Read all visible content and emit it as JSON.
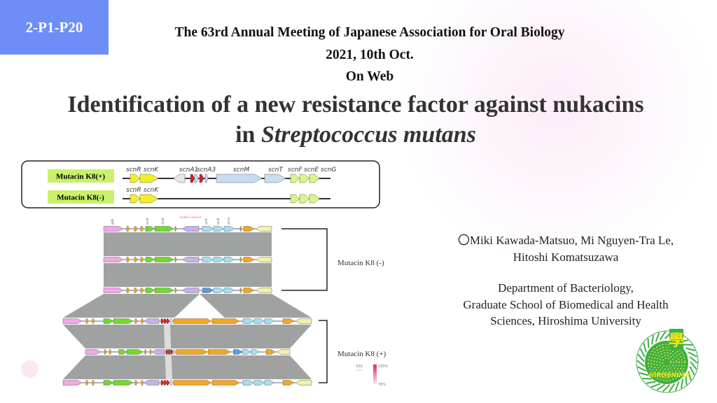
{
  "badge": {
    "label": "2-P1-P20",
    "color": "#6d8ef6"
  },
  "meeting": {
    "line1": "The 63rd Annual Meeting of Japanese Association for Oral Biology",
    "line2": "2021, 10th Oct.",
    "line3": "On Web"
  },
  "title": {
    "line1": "Identification of a new resistance factor against nukacins",
    "line2_prefix": "in ",
    "line2_italic": "Streptococcus mutans"
  },
  "gene_cluster": {
    "row_plus_label": "Mutacin K8(+)",
    "row_minus_label": "Mutacin K8(-)",
    "label_color": "#c9f26a",
    "plus_gene_labels": [
      "scnR",
      "scnK",
      "scnA1",
      "scnA3",
      "scnM",
      "scnT",
      "scnF",
      "scnE",
      "scnG"
    ],
    "minus_gene_labels": [
      "scnR",
      "scnK"
    ]
  },
  "comparison": {
    "top_labels": [
      "gdB",
      "scnR",
      "scnK",
      "scnF",
      "scnE",
      "scnG"
    ],
    "mobile_element_label": "mobile element",
    "group_minus": "Mutacin K8 (-)",
    "group_plus": "Mutacin K8 (+)",
    "scale_label": "500",
    "identity_max": "100%",
    "identity_min": "76%",
    "colors": {
      "pink": "#f3a6e6",
      "orange": "#f6a623",
      "green": "#72d92e",
      "lilac": "#c7b1ea",
      "cyan": "#a6def2",
      "blue": "#5b9ae0",
      "cream": "#f4f0a8",
      "red": "#d81e1e",
      "grey": "#9a9d9c"
    }
  },
  "authors": {
    "line1": "〇Miki Kawada-Matsuo, Mi Nguyen-Tra Le,",
    "line2": "Hitoshi Komatsuzawa"
  },
  "affiliation": {
    "line1": "Department of Bacteriology,",
    "line2": "Graduate School of Biomedical and Health",
    "line3": "Sciences, Hiroshima University"
  },
  "logo": {
    "text": "HIROSHIMA",
    "name": "hiroshima-university-logo"
  }
}
